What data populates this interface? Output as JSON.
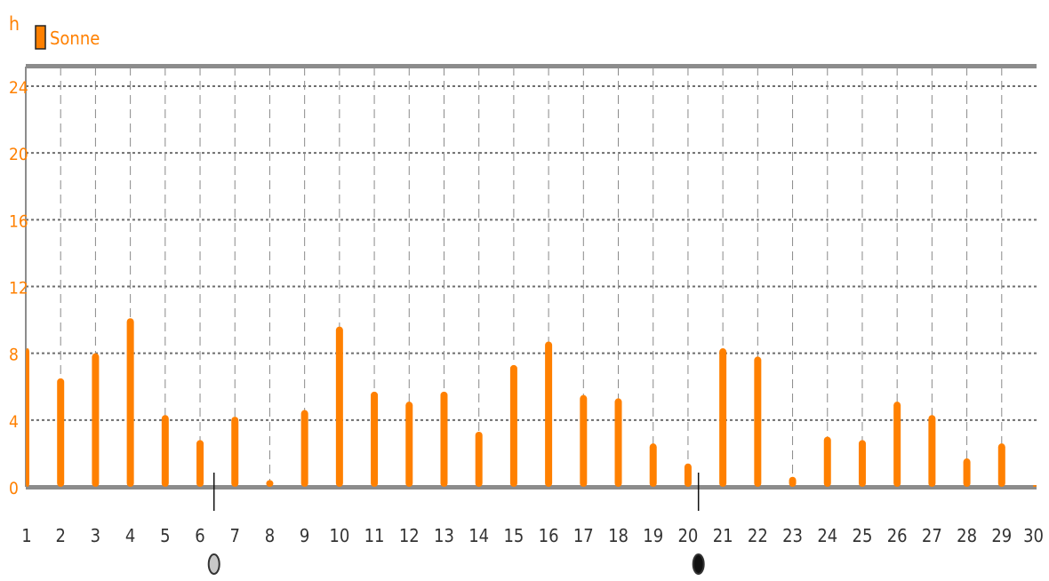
{
  "chart_data": {
    "type": "bar",
    "title": "",
    "xlabel": "",
    "ylabel": "h",
    "ylim": [
      0,
      25
    ],
    "yticks": [
      0,
      4,
      8,
      12,
      16,
      20,
      24
    ],
    "x": [
      1,
      2,
      3,
      4,
      5,
      6,
      7,
      8,
      9,
      10,
      11,
      12,
      13,
      14,
      15,
      16,
      17,
      18,
      19,
      20,
      21,
      22,
      23,
      24,
      25,
      26,
      27,
      28,
      29,
      30
    ],
    "xlim": [
      1,
      30
    ],
    "grid": true,
    "legend_position": "top-left",
    "series": [
      {
        "name": "Sonne",
        "color": "#ff8000",
        "values": [
          8.3,
          6.5,
          8.0,
          10.1,
          4.3,
          2.8,
          4.2,
          0.4,
          4.6,
          9.6,
          5.7,
          5.1,
          5.7,
          3.3,
          7.3,
          8.7,
          5.5,
          5.3,
          2.6,
          1.4,
          8.3,
          7.8,
          0.6,
          3.0,
          2.8,
          5.1,
          4.3,
          1.7,
          2.6,
          0.1
        ]
      }
    ],
    "moon_phase_markers": [
      {
        "x": 6.4,
        "phase": "full-moon",
        "icon": "full-moon-icon"
      },
      {
        "x": 20.3,
        "phase": "new-moon",
        "icon": "new-moon-icon"
      }
    ]
  }
}
